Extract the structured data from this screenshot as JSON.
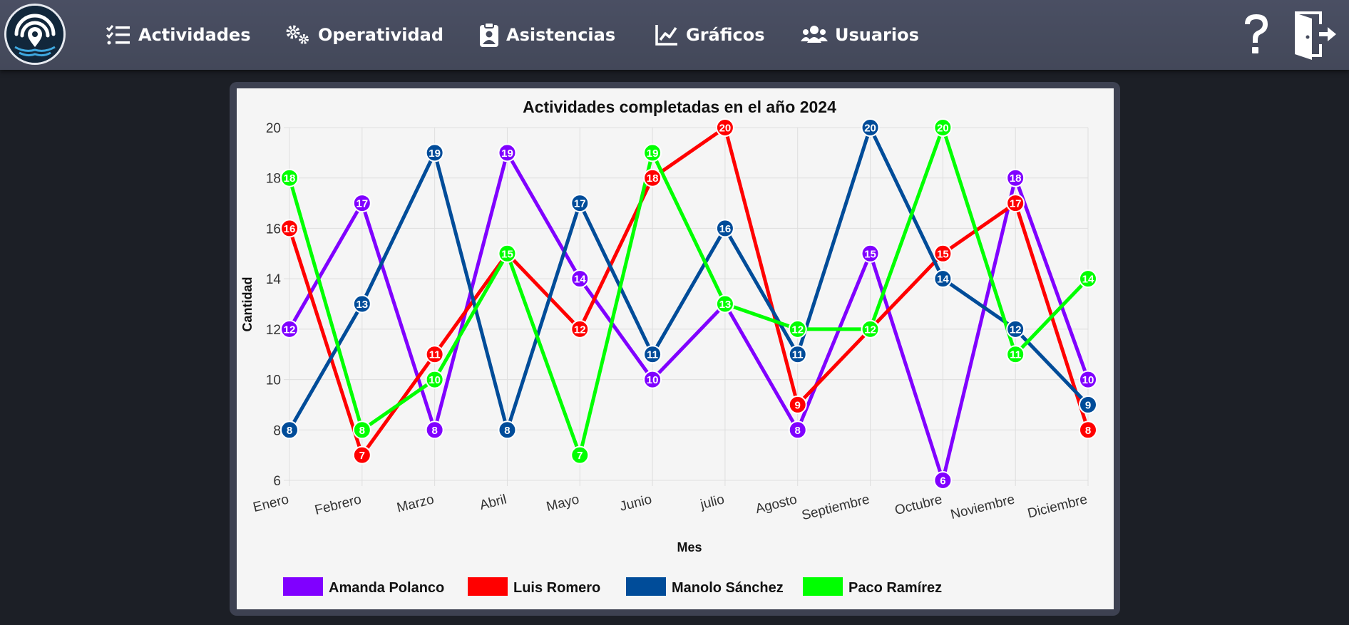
{
  "nav": {
    "items": [
      {
        "label": "Actividades",
        "icon": "task-list-icon"
      },
      {
        "label": "Operatividad",
        "icon": "gears-icon"
      },
      {
        "label": "Asistencias",
        "icon": "clipboard-user-icon"
      },
      {
        "label": "Gráficos",
        "icon": "line-chart-icon"
      },
      {
        "label": "Usuarios",
        "icon": "users-icon"
      }
    ],
    "help_label": "?"
  },
  "chart_data": {
    "type": "line",
    "title": "Actividades completadas en el año 2024",
    "xlabel": "Mes",
    "ylabel": "Cantidad",
    "categories": [
      "Enero",
      "Febrero",
      "Marzo",
      "Abril",
      "Mayo",
      "Junio",
      "julio",
      "Agosto",
      "Septiembre",
      "Octubre",
      "Noviembre",
      "Diciembre"
    ],
    "yticks": [
      "6",
      "8",
      "10",
      "12",
      "14",
      "16",
      "18",
      "20"
    ],
    "ylim": [
      6,
      20
    ],
    "grid": true,
    "legend_position": "bottom",
    "series": [
      {
        "name": "Amanda Polanco",
        "color": "#8000ff",
        "values": [
          12,
          17,
          8,
          19,
          14,
          10,
          13,
          8,
          15,
          6,
          18,
          10
        ]
      },
      {
        "name": "Luis Romero",
        "color": "#ff0000",
        "values": [
          16,
          7,
          11,
          15,
          12,
          18,
          20,
          9,
          12,
          15,
          17,
          8
        ]
      },
      {
        "name": "Manolo Sánchez",
        "color": "#004c99",
        "values": [
          8,
          13,
          19,
          8,
          17,
          11,
          16,
          11,
          20,
          14,
          12,
          9
        ]
      },
      {
        "name": "Paco Ramírez",
        "color": "#00ff00",
        "values": [
          18,
          8,
          10,
          15,
          7,
          19,
          13,
          12,
          12,
          20,
          11,
          14
        ]
      }
    ]
  }
}
